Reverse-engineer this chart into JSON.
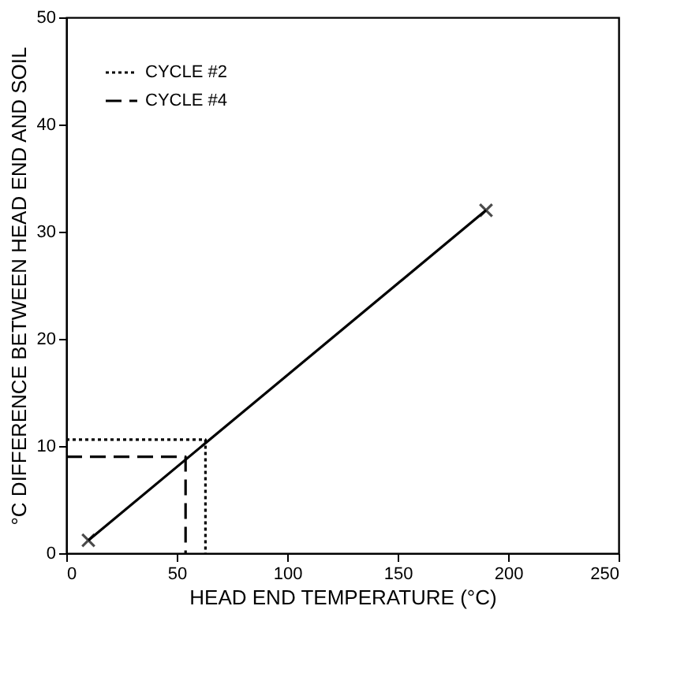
{
  "chart_data": {
    "type": "line",
    "xlabel": "HEAD END TEMPERATURE (°C)",
    "ylabel": "°C DIFFERENCE BETWEEN HEAD END AND SOIL",
    "xlim": [
      0,
      250
    ],
    "xticks": [
      0,
      50,
      100,
      150,
      200,
      250
    ],
    "ylim": [
      0,
      50
    ],
    "yticks": [
      0,
      10,
      20,
      30,
      40,
      50
    ],
    "grid": false,
    "legend": "top left",
    "series": [
      {
        "color": "#000000",
        "x": [
          10,
          190
        ],
        "values": [
          1.2,
          32
        ],
        "marker": "cross",
        "line_style": "solid"
      },
      {
        "name": "CYCLE #2",
        "color": "#000000",
        "x": [
          0,
          63,
          63
        ],
        "values": [
          10.6,
          10.6,
          0
        ],
        "marker": "none",
        "line_style": "dotted"
      },
      {
        "name": "CYCLE #4",
        "color": "#000000",
        "x": [
          0,
          54,
          54
        ],
        "values": [
          9,
          9,
          0
        ],
        "marker": "none",
        "line_style": "dashed"
      }
    ]
  }
}
